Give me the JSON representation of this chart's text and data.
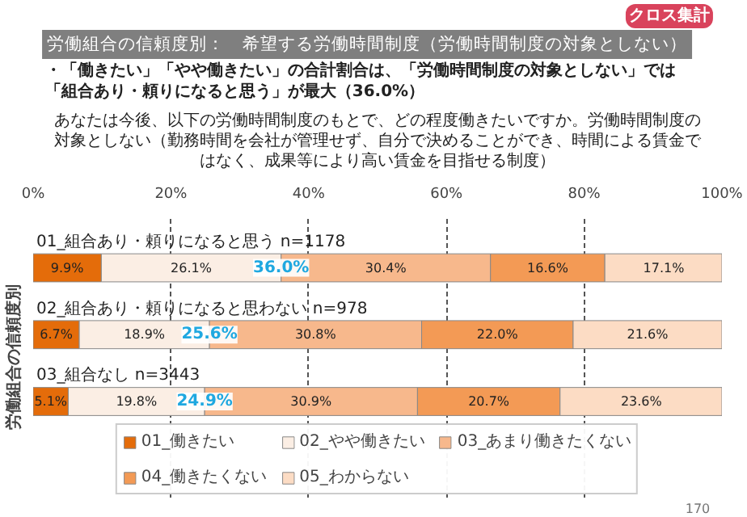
{
  "chart_data": {
    "type": "bar",
    "orientation": "horizontal",
    "stacked": true,
    "title": "労働組合の信頼度別：　希望する労働時間制度（労働時間制度の対象としない）",
    "subtitle": "・「働きたい」「やや働きたい」の合計割合は、「労働時間制度の対象としない」では「組合あり・頼りになると思う」が最大（36.0%）",
    "ylabel": "労働組合の信頼度別",
    "categories": [
      "01_組合あり・頼りになると思う n=1178",
      "02_組合あり・頼りになると思わない n=978",
      "03_組合なし n=3443"
    ],
    "series": [
      {
        "name": "01_働きたい",
        "color": "#e46c0a",
        "values": [
          9.9,
          6.7,
          5.1
        ],
        "value_labels": [
          "9.9%",
          "6.7%",
          "5.1%"
        ]
      },
      {
        "name": "02_やや働きたい",
        "color": "#fbeee4",
        "values": [
          26.1,
          18.9,
          19.8
        ],
        "value_labels": [
          "26.1%",
          "18.9%",
          "19.8%"
        ]
      },
      {
        "name": "03_あまり働きたくない",
        "color": "#f7b88c",
        "values": [
          30.4,
          30.8,
          30.9
        ],
        "value_labels": [
          "30.4%",
          "30.8%",
          "30.9%"
        ]
      },
      {
        "name": "04_働きたくない",
        "color": "#f39a55",
        "values": [
          16.6,
          22.0,
          20.7
        ],
        "value_labels": [
          "16.6%",
          "22.0%",
          "20.7%"
        ]
      },
      {
        "name": "05_わからない",
        "color": "#fcdcc4",
        "values": [
          17.1,
          21.6,
          23.6
        ],
        "value_labels": [
          "17.1%",
          "21.6%",
          "23.6%"
        ]
      }
    ],
    "xlim": [
      0,
      100
    ],
    "xticks": [
      {
        "value": 0,
        "label": "0%"
      },
      {
        "value": 20,
        "label": "20%"
      },
      {
        "value": 40,
        "label": "40%"
      },
      {
        "value": 60,
        "label": "60%"
      },
      {
        "value": 80,
        "label": "80%"
      },
      {
        "value": 100,
        "label": "100%"
      }
    ],
    "grid": "x",
    "legend": "bottom",
    "annotations": [
      "クロス集計",
      "あなたは今後、以下の労働時間制度のもとで、どの程度働きたいですか。労働時間制度の対象としない（勤務時間を会社が管理せず、自分で決めることができ、時間による賃金ではなく、成果等により高い賃金を目指せる制度）",
      {
        "text": "36.0%",
        "x": 36.0,
        "y": "01_組合あり・頼りになると思う n=1178"
      },
      {
        "text": "25.6%",
        "x": 25.6,
        "y": "02_組合あり・頼りになると思わない n=978"
      },
      {
        "text": "24.9%",
        "x": 24.9,
        "y": "03_組合なし n=3443"
      },
      "170"
    ]
  }
}
